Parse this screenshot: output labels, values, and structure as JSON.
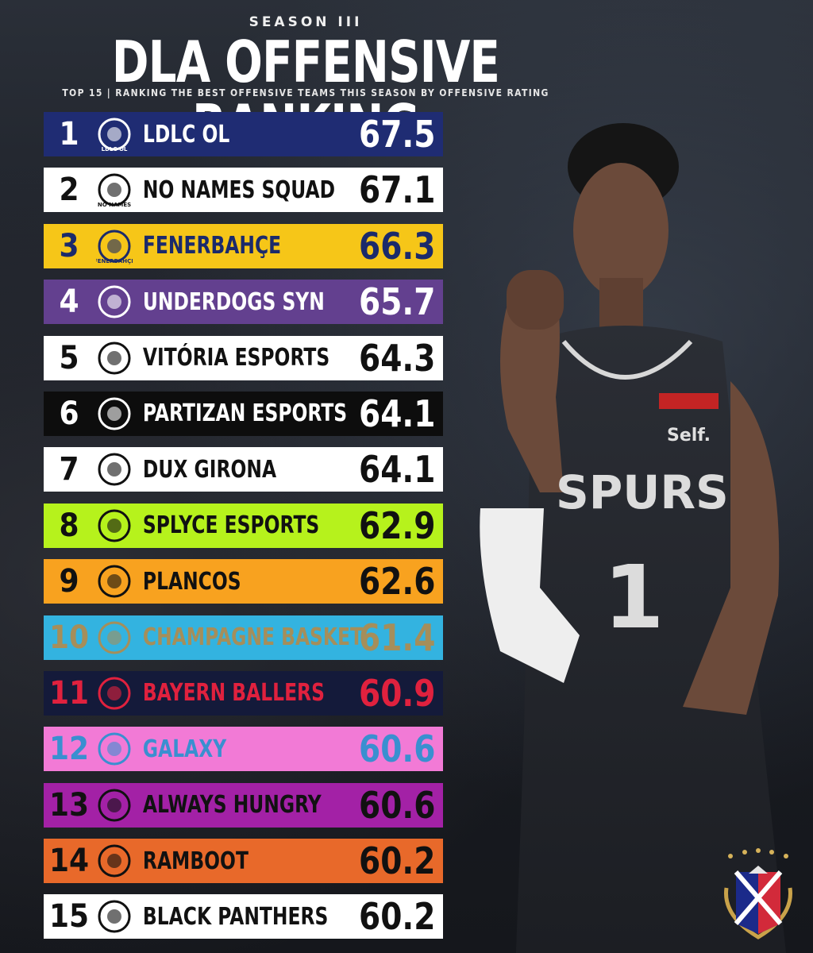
{
  "header": {
    "season": "SEASON III",
    "title": "DLA OFFENSIVE RANKING",
    "subtitle": "TOP 15 | RANKING THE BEST OFFENSIVE TEAMS THIS SEASON BY OFFENSIVE RATING"
  },
  "player": {
    "jersey_brand": "SPURS",
    "jersey_number": "1",
    "sponsor": "Self."
  },
  "teams": [
    {
      "rank": "1",
      "name": "LDLC OL",
      "score": "67.5",
      "bg": "#1f2c73",
      "fg": "#ffffff",
      "logo_text": "LDLC OL"
    },
    {
      "rank": "2",
      "name": "NO NAMES SQUAD",
      "score": "67.1",
      "bg": "#ffffff",
      "fg": "#111111",
      "logo_text": "NO NAMES"
    },
    {
      "rank": "3",
      "name": "FENERBAHÇE",
      "score": "66.3",
      "bg": "#f6c618",
      "fg": "#1b2a6b",
      "logo_text": "FENERBAHÇE"
    },
    {
      "rank": "4",
      "name": "UNDERDOGS SYN",
      "score": "65.7",
      "bg": "#63408f",
      "fg": "#ffffff",
      "logo_text": ""
    },
    {
      "rank": "5",
      "name": "VITÓRIA ESPORTS",
      "score": "64.3",
      "bg": "#ffffff",
      "fg": "#111111",
      "logo_text": ""
    },
    {
      "rank": "6",
      "name": "PARTIZAN ESPORTS",
      "score": "64.1",
      "bg": "#0d0d0d",
      "fg": "#ffffff",
      "logo_text": ""
    },
    {
      "rank": "7",
      "name": "DUX GIRONA",
      "score": "64.1",
      "bg": "#ffffff",
      "fg": "#111111",
      "logo_text": ""
    },
    {
      "rank": "8",
      "name": "SPLYCE ESPORTS",
      "score": "62.9",
      "bg": "#b6f21c",
      "fg": "#111111",
      "logo_text": ""
    },
    {
      "rank": "9",
      "name": "PLANCOS",
      "score": "62.6",
      "bg": "#f8a21f",
      "fg": "#111111",
      "logo_text": ""
    },
    {
      "rank": "10",
      "name": "CHAMPAGNE BASKET",
      "score": "61.4",
      "bg": "#33b3e0",
      "fg": "#a58e5a",
      "logo_text": ""
    },
    {
      "rank": "11",
      "name": "BAYERN BALLERS",
      "score": "60.9",
      "bg": "#141a3a",
      "fg": "#e0213e",
      "logo_text": ""
    },
    {
      "rank": "12",
      "name": "GALAXY",
      "score": "60.6",
      "bg": "#f27ad6",
      "fg": "#3a8fd0",
      "logo_text": ""
    },
    {
      "rank": "13",
      "name": "ALWAYS HUNGRY",
      "score": "60.6",
      "bg": "#a321a6",
      "fg": "#111111",
      "logo_text": ""
    },
    {
      "rank": "14",
      "name": "RAMBOOT",
      "score": "60.2",
      "bg": "#e8692a",
      "fg": "#111111",
      "logo_text": ""
    },
    {
      "rank": "15",
      "name": "BLACK PANTHERS",
      "score": "60.2",
      "bg": "#ffffff",
      "fg": "#111111",
      "logo_text": ""
    }
  ]
}
